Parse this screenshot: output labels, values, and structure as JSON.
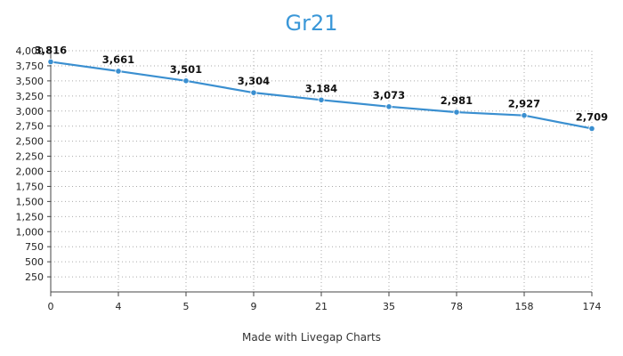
{
  "title": "Gr21",
  "footer": "Made with Livegap Charts",
  "colors": {
    "title": "#3a97d8",
    "series": "#3a8fd0",
    "grid": "#aaaaaa"
  },
  "chart_data": {
    "type": "line",
    "title": "Gr21",
    "xlabel": "",
    "ylabel": "",
    "categories": [
      "0",
      "4",
      "5",
      "9",
      "21",
      "35",
      "78",
      "158",
      "174"
    ],
    "series": [
      {
        "values": [
          3816,
          3661,
          3501,
          3304,
          3184,
          3073,
          2981,
          2927,
          2709
        ]
      }
    ],
    "data_labels": [
      "3,816",
      "3,661",
      "3,501",
      "3,304",
      "3,184",
      "3,073",
      "2,981",
      "2,927",
      "2,709"
    ],
    "ylim": [
      0,
      4000
    ],
    "yticks": [
      250,
      500,
      750,
      1000,
      1250,
      1500,
      1750,
      2000,
      2250,
      2500,
      2750,
      3000,
      3250,
      3500,
      3750,
      4000
    ],
    "ytick_labels": [
      "250",
      "500",
      "750",
      "1,000",
      "1,250",
      "1,500",
      "1,750",
      "2,000",
      "2,250",
      "2,500",
      "2,750",
      "3,000",
      "3,250",
      "3,500",
      "3,750",
      "4,000"
    ],
    "grid": true,
    "legend": "none"
  }
}
